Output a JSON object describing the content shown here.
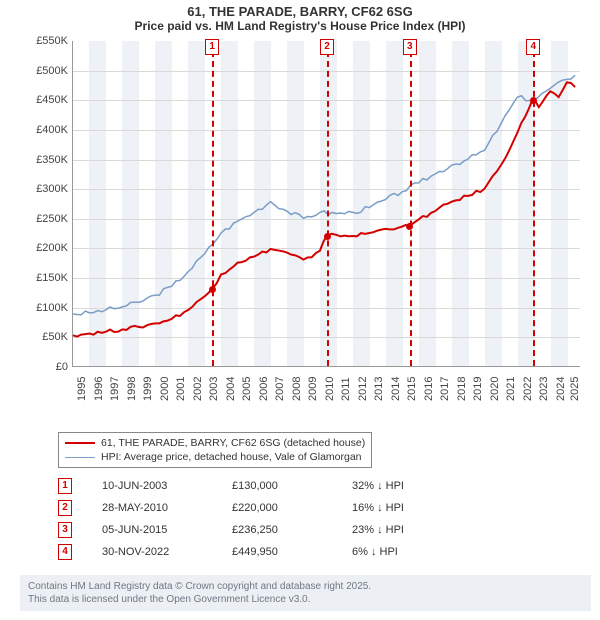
{
  "title": "61, THE PARADE, BARRY, CF62 6SG",
  "subtitle": "Price paid vs. HM Land Registry's House Price Index (HPI)",
  "chart": {
    "type": "line",
    "background_color": "#ffffff",
    "alt_band_color": "#eef2f6",
    "grid_color": "#d9d9d9",
    "axis_color": "#999999",
    "label_fontsize": 11,
    "label_color": "#444444",
    "x_years": [
      1995,
      1996,
      1997,
      1998,
      1999,
      2000,
      2001,
      2002,
      2003,
      2004,
      2005,
      2006,
      2007,
      2008,
      2009,
      2010,
      2011,
      2012,
      2013,
      2014,
      2015,
      2016,
      2017,
      2018,
      2019,
      2020,
      2021,
      2022,
      2023,
      2024,
      2025
    ],
    "y_ticks": [
      0,
      50000,
      100000,
      150000,
      200000,
      250000,
      300000,
      350000,
      400000,
      450000,
      500000,
      550000
    ],
    "y_labels": [
      "£0",
      "£50K",
      "£100K",
      "£150K",
      "£200K",
      "£250K",
      "£300K",
      "£350K",
      "£400K",
      "£450K",
      "£500K",
      "£550K"
    ],
    "ylim": [
      0,
      550000
    ],
    "xlim": [
      1995,
      2025.8
    ],
    "series": [
      {
        "id": "price_paid",
        "label": "61, THE PARADE, BARRY, CF62 6SG (detached house)",
        "color": "#d40000",
        "line_width": 2,
        "points": [
          [
            1995,
            52000
          ],
          [
            1996,
            55000
          ],
          [
            1997,
            58000
          ],
          [
            1998,
            62000
          ],
          [
            1999,
            66000
          ],
          [
            2000,
            72000
          ],
          [
            2001,
            80000
          ],
          [
            2002,
            95000
          ],
          [
            2003,
            118000
          ],
          [
            2003.44,
            130000
          ],
          [
            2004,
            155000
          ],
          [
            2005,
            175000
          ],
          [
            2006,
            185000
          ],
          [
            2007,
            198000
          ],
          [
            2008,
            192000
          ],
          [
            2009,
            180000
          ],
          [
            2009.5,
            184000
          ],
          [
            2010,
            195000
          ],
          [
            2010.4,
            220000
          ],
          [
            2011,
            222000
          ],
          [
            2012,
            220000
          ],
          [
            2013,
            225000
          ],
          [
            2014,
            232000
          ],
          [
            2015,
            236000
          ],
          [
            2015.42,
            236250
          ],
          [
            2016,
            248000
          ],
          [
            2017,
            262000
          ],
          [
            2018,
            278000
          ],
          [
            2019,
            288000
          ],
          [
            2020,
            300000
          ],
          [
            2021,
            340000
          ],
          [
            2022,
            395000
          ],
          [
            2022.91,
            449950
          ],
          [
            2023,
            452000
          ],
          [
            2023.3,
            438000
          ],
          [
            2024,
            465000
          ],
          [
            2024.5,
            455000
          ],
          [
            2025,
            480000
          ],
          [
            2025.5,
            472000
          ]
        ]
      },
      {
        "id": "hpi",
        "label": "HPI: Average price, detached house, Vale of Glamorgan",
        "color": "#7a9cc6",
        "line_width": 1.5,
        "points": [
          [
            1995,
            88000
          ],
          [
            1996,
            90000
          ],
          [
            1997,
            95000
          ],
          [
            1998,
            100000
          ],
          [
            1999,
            108000
          ],
          [
            2000,
            120000
          ],
          [
            2001,
            135000
          ],
          [
            2002,
            160000
          ],
          [
            2003,
            190000
          ],
          [
            2004,
            225000
          ],
          [
            2005,
            245000
          ],
          [
            2006,
            260000
          ],
          [
            2007,
            278000
          ],
          [
            2008,
            262000
          ],
          [
            2009,
            250000
          ],
          [
            2010,
            260000
          ],
          [
            2011,
            258000
          ],
          [
            2012,
            260000
          ],
          [
            2013,
            268000
          ],
          [
            2014,
            282000
          ],
          [
            2015,
            295000
          ],
          [
            2016,
            310000
          ],
          [
            2017,
            325000
          ],
          [
            2018,
            340000
          ],
          [
            2019,
            350000
          ],
          [
            2020,
            365000
          ],
          [
            2021,
            410000
          ],
          [
            2022,
            455000
          ],
          [
            2023,
            450000
          ],
          [
            2024,
            470000
          ],
          [
            2025,
            485000
          ],
          [
            2025.5,
            492000
          ]
        ]
      }
    ],
    "markers": [
      {
        "n": "1",
        "year": 2003.44,
        "color": "#d40000"
      },
      {
        "n": "2",
        "year": 2010.4,
        "color": "#d40000"
      },
      {
        "n": "3",
        "year": 2015.42,
        "color": "#d40000"
      },
      {
        "n": "4",
        "year": 2022.91,
        "color": "#d40000"
      }
    ],
    "marker_dots": [
      {
        "year": 2003.44,
        "value": 130000,
        "color": "#d40000"
      },
      {
        "year": 2010.4,
        "value": 220000,
        "color": "#d40000"
      },
      {
        "year": 2015.42,
        "value": 236250,
        "color": "#d40000"
      },
      {
        "year": 2022.91,
        "value": 449950,
        "color": "#d40000"
      }
    ]
  },
  "legend": [
    {
      "color": "#d40000",
      "width": 2,
      "label": "61, THE PARADE, BARRY, CF62 6SG (detached house)"
    },
    {
      "color": "#7a9cc6",
      "width": 1.5,
      "label": "HPI: Average price, detached house, Vale of Glamorgan"
    }
  ],
  "transactions": [
    {
      "n": "1",
      "color": "#d40000",
      "date": "10-JUN-2003",
      "price": "£130,000",
      "diff": "32% ↓ HPI"
    },
    {
      "n": "2",
      "color": "#d40000",
      "date": "28-MAY-2010",
      "price": "£220,000",
      "diff": "16% ↓ HPI"
    },
    {
      "n": "3",
      "color": "#d40000",
      "date": "05-JUN-2015",
      "price": "£236,250",
      "diff": "23% ↓ HPI"
    },
    {
      "n": "4",
      "color": "#d40000",
      "date": "30-NOV-2022",
      "price": "£449,950",
      "diff": "6% ↓ HPI"
    }
  ],
  "footer_l1": "Contains HM Land Registry data © Crown copyright and database right 2025.",
  "footer_l2": "This data is licensed under the Open Government Licence v3.0."
}
